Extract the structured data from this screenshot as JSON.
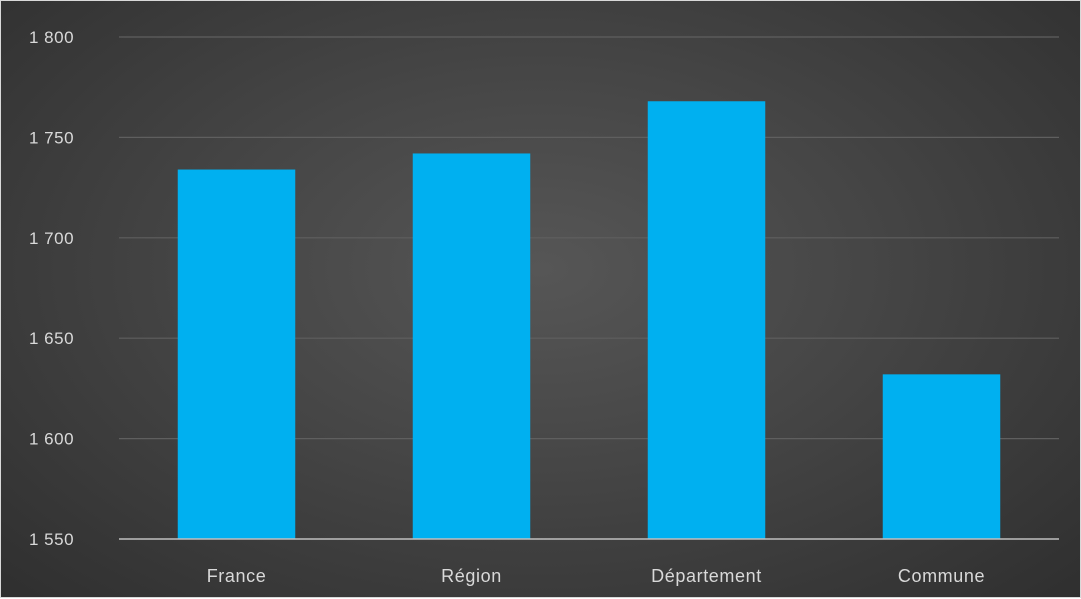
{
  "chart_data": {
    "type": "bar",
    "categories": [
      "France",
      "Région",
      "Département",
      "Commune"
    ],
    "values": [
      1734,
      1742,
      1768,
      1632
    ],
    "ylim": [
      1550,
      1800
    ],
    "yticks": [
      1550,
      1600,
      1650,
      1700,
      1750,
      1800
    ],
    "ytick_labels": [
      "1 550",
      "1 600",
      "1 650",
      "1 700",
      "1 750",
      "1 800"
    ],
    "grid": true,
    "legend": "none",
    "title": "",
    "xlabel": "",
    "ylabel": "",
    "colors": {
      "bar": "#00b0f0",
      "grid": "#5f5f5f",
      "axis": "#bfbfbf",
      "text": "#d9d9d9"
    }
  }
}
